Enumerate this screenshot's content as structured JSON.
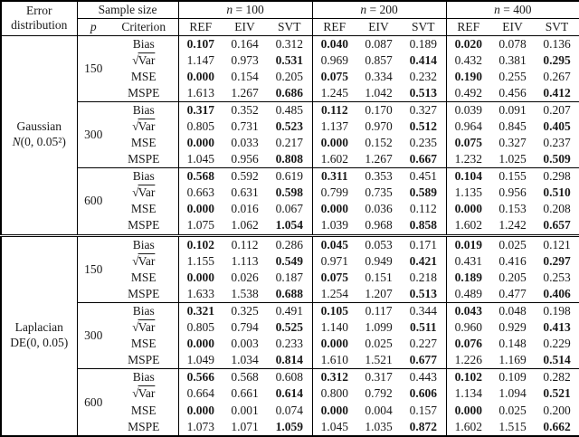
{
  "table": {
    "header": {
      "error_line1": "Error",
      "error_line2": "distribution",
      "sample_size": "Sample size",
      "p_var": "p",
      "criterion": "Criterion",
      "groups": [
        {
          "var": "n",
          "rest": " = 100"
        },
        {
          "var": "n",
          "rest": " = 200"
        },
        {
          "var": "n",
          "rest": " = 400"
        }
      ],
      "methods": [
        "REF",
        "EIV",
        "SVT"
      ]
    },
    "criteria": [
      {
        "radical": false,
        "label": "Bias"
      },
      {
        "radical": true,
        "sqrt_symbol": "√",
        "label": "Var"
      },
      {
        "radical": false,
        "label": "MSE"
      },
      {
        "radical": false,
        "label": "MSPE"
      }
    ],
    "sections": [
      {
        "name": "Gaussian",
        "dist_var": "N",
        "dist_var_italic": true,
        "dist_args": "(0, 0.05²)",
        "blocks": [
          {
            "p": "150",
            "rows": [
              {
                "values": [
                  "0.107",
                  "0.164",
                  "0.312",
                  "0.040",
                  "0.087",
                  "0.189",
                  "0.020",
                  "0.078",
                  "0.136"
                ],
                "bold": [
                  1,
                  0,
                  0,
                  1,
                  0,
                  0,
                  1,
                  0,
                  0
                ]
              },
              {
                "values": [
                  "1.147",
                  "0.973",
                  "0.531",
                  "0.969",
                  "0.857",
                  "0.414",
                  "0.432",
                  "0.381",
                  "0.295"
                ],
                "bold": [
                  0,
                  0,
                  1,
                  0,
                  0,
                  1,
                  0,
                  0,
                  1
                ]
              },
              {
                "values": [
                  "0.000",
                  "0.154",
                  "0.205",
                  "0.075",
                  "0.334",
                  "0.232",
                  "0.190",
                  "0.255",
                  "0.267"
                ],
                "bold": [
                  1,
                  0,
                  0,
                  1,
                  0,
                  0,
                  1,
                  0,
                  0
                ]
              },
              {
                "values": [
                  "1.613",
                  "1.267",
                  "0.686",
                  "1.245",
                  "1.042",
                  "0.513",
                  "0.492",
                  "0.456",
                  "0.412"
                ],
                "bold": [
                  0,
                  0,
                  1,
                  0,
                  0,
                  1,
                  0,
                  0,
                  1
                ]
              }
            ]
          },
          {
            "p": "300",
            "rows": [
              {
                "values": [
                  "0.317",
                  "0.352",
                  "0.485",
                  "0.112",
                  "0.170",
                  "0.327",
                  "0.039",
                  "0.091",
                  "0.207"
                ],
                "bold": [
                  1,
                  0,
                  0,
                  1,
                  0,
                  0,
                  0,
                  0,
                  0
                ]
              },
              {
                "values": [
                  "0.805",
                  "0.731",
                  "0.523",
                  "1.137",
                  "0.970",
                  "0.512",
                  "0.964",
                  "0.845",
                  "0.405"
                ],
                "bold": [
                  0,
                  0,
                  1,
                  0,
                  0,
                  1,
                  0,
                  0,
                  1
                ]
              },
              {
                "values": [
                  "0.000",
                  "0.033",
                  "0.217",
                  "0.000",
                  "0.152",
                  "0.235",
                  "0.075",
                  "0.327",
                  "0.237"
                ],
                "bold": [
                  1,
                  0,
                  0,
                  1,
                  0,
                  0,
                  1,
                  0,
                  0
                ]
              },
              {
                "values": [
                  "1.045",
                  "0.956",
                  "0.808",
                  "1.602",
                  "1.267",
                  "0.667",
                  "1.232",
                  "1.025",
                  "0.509"
                ],
                "bold": [
                  0,
                  0,
                  1,
                  0,
                  0,
                  1,
                  0,
                  0,
                  1
                ]
              }
            ]
          },
          {
            "p": "600",
            "rows": [
              {
                "values": [
                  "0.568",
                  "0.592",
                  "0.619",
                  "0.311",
                  "0.353",
                  "0.451",
                  "0.104",
                  "0.155",
                  "0.298"
                ],
                "bold": [
                  1,
                  0,
                  0,
                  1,
                  0,
                  0,
                  1,
                  0,
                  0
                ]
              },
              {
                "values": [
                  "0.663",
                  "0.631",
                  "0.598",
                  "0.799",
                  "0.735",
                  "0.589",
                  "1.135",
                  "0.956",
                  "0.510"
                ],
                "bold": [
                  0,
                  0,
                  1,
                  0,
                  0,
                  1,
                  0,
                  0,
                  1
                ]
              },
              {
                "values": [
                  "0.000",
                  "0.016",
                  "0.067",
                  "0.000",
                  "0.036",
                  "0.112",
                  "0.000",
                  "0.153",
                  "0.208"
                ],
                "bold": [
                  1,
                  0,
                  0,
                  1,
                  0,
                  0,
                  1,
                  0,
                  0
                ]
              },
              {
                "values": [
                  "1.075",
                  "1.062",
                  "1.054",
                  "1.039",
                  "0.968",
                  "0.858",
                  "1.602",
                  "1.242",
                  "0.657"
                ],
                "bold": [
                  0,
                  0,
                  1,
                  0,
                  0,
                  1,
                  0,
                  0,
                  1
                ]
              }
            ]
          }
        ]
      },
      {
        "name": "Laplacian",
        "dist_var": "DE",
        "dist_var_italic": false,
        "dist_args": "(0, 0.05)",
        "blocks": [
          {
            "p": "150",
            "rows": [
              {
                "values": [
                  "0.102",
                  "0.112",
                  "0.286",
                  "0.045",
                  "0.053",
                  "0.171",
                  "0.019",
                  "0.025",
                  "0.121"
                ],
                "bold": [
                  1,
                  0,
                  0,
                  1,
                  0,
                  0,
                  1,
                  0,
                  0
                ]
              },
              {
                "values": [
                  "1.155",
                  "1.113",
                  "0.549",
                  "0.971",
                  "0.949",
                  "0.421",
                  "0.431",
                  "0.416",
                  "0.297"
                ],
                "bold": [
                  0,
                  0,
                  1,
                  0,
                  0,
                  1,
                  0,
                  0,
                  1
                ]
              },
              {
                "values": [
                  "0.000",
                  "0.026",
                  "0.187",
                  "0.075",
                  "0.151",
                  "0.218",
                  "0.189",
                  "0.205",
                  "0.253"
                ],
                "bold": [
                  1,
                  0,
                  0,
                  1,
                  0,
                  0,
                  1,
                  0,
                  0
                ]
              },
              {
                "values": [
                  "1.633",
                  "1.538",
                  "0.688",
                  "1.254",
                  "1.207",
                  "0.513",
                  "0.489",
                  "0.477",
                  "0.406"
                ],
                "bold": [
                  0,
                  0,
                  1,
                  0,
                  0,
                  1,
                  0,
                  0,
                  1
                ]
              }
            ]
          },
          {
            "p": "300",
            "rows": [
              {
                "values": [
                  "0.321",
                  "0.325",
                  "0.491",
                  "0.105",
                  "0.117",
                  "0.344",
                  "0.043",
                  "0.048",
                  "0.198"
                ],
                "bold": [
                  1,
                  0,
                  0,
                  1,
                  0,
                  0,
                  1,
                  0,
                  0
                ]
              },
              {
                "values": [
                  "0.805",
                  "0.794",
                  "0.525",
                  "1.140",
                  "1.099",
                  "0.511",
                  "0.960",
                  "0.929",
                  "0.413"
                ],
                "bold": [
                  0,
                  0,
                  1,
                  0,
                  0,
                  1,
                  0,
                  0,
                  1
                ]
              },
              {
                "values": [
                  "0.000",
                  "0.003",
                  "0.233",
                  "0.000",
                  "0.025",
                  "0.227",
                  "0.076",
                  "0.148",
                  "0.229"
                ],
                "bold": [
                  1,
                  0,
                  0,
                  1,
                  0,
                  0,
                  1,
                  0,
                  0
                ]
              },
              {
                "values": [
                  "1.049",
                  "1.034",
                  "0.814",
                  "1.610",
                  "1.521",
                  "0.677",
                  "1.226",
                  "1.169",
                  "0.514"
                ],
                "bold": [
                  0,
                  0,
                  1,
                  0,
                  0,
                  1,
                  0,
                  0,
                  1
                ]
              }
            ]
          },
          {
            "p": "600",
            "rows": [
              {
                "values": [
                  "0.566",
                  "0.568",
                  "0.608",
                  "0.312",
                  "0.317",
                  "0.443",
                  "0.102",
                  "0.109",
                  "0.282"
                ],
                "bold": [
                  1,
                  0,
                  0,
                  1,
                  0,
                  0,
                  1,
                  0,
                  0
                ]
              },
              {
                "values": [
                  "0.664",
                  "0.661",
                  "0.614",
                  "0.800",
                  "0.792",
                  "0.606",
                  "1.134",
                  "1.094",
                  "0.521"
                ],
                "bold": [
                  0,
                  0,
                  1,
                  0,
                  0,
                  1,
                  0,
                  0,
                  1
                ]
              },
              {
                "values": [
                  "0.000",
                  "0.001",
                  "0.074",
                  "0.000",
                  "0.004",
                  "0.157",
                  "0.000",
                  "0.025",
                  "0.200"
                ],
                "bold": [
                  1,
                  0,
                  0,
                  1,
                  0,
                  0,
                  1,
                  0,
                  0
                ]
              },
              {
                "values": [
                  "1.073",
                  "1.071",
                  "1.059",
                  "1.045",
                  "1.035",
                  "0.872",
                  "1.602",
                  "1.515",
                  "0.662"
                ],
                "bold": [
                  0,
                  0,
                  1,
                  0,
                  0,
                  1,
                  0,
                  0,
                  1
                ]
              }
            ]
          }
        ]
      }
    ]
  }
}
